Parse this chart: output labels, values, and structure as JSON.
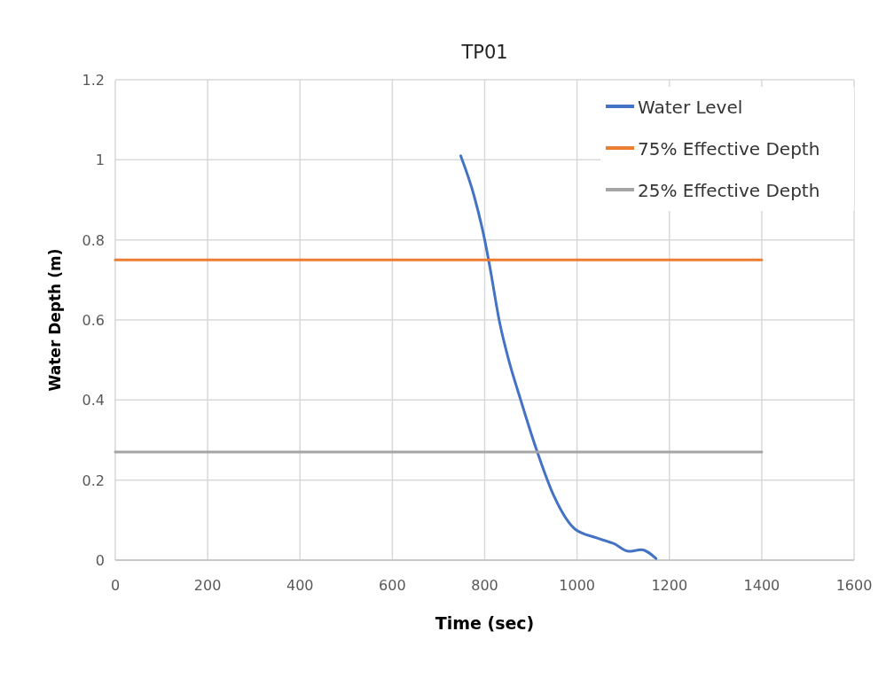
{
  "chart_data": {
    "type": "line",
    "title": "TP01",
    "xlabel": "Time (sec)",
    "ylabel": "Water Depth (m)",
    "xlim": [
      0,
      1600
    ],
    "xticks": [
      0,
      200,
      400,
      600,
      800,
      1000,
      1200,
      1400,
      1600
    ],
    "ylim": [
      0,
      1.2
    ],
    "yticks": [
      0,
      0.2,
      0.4,
      0.6,
      0.8,
      1,
      1.2
    ],
    "grid": true,
    "legend": "top right",
    "marker": "none",
    "line_style": "solid",
    "series": [
      {
        "name": "Water Level",
        "color": "#4472c4",
        "x": [
          748,
          777,
          800,
          810,
          833,
          852,
          878,
          911,
          950,
          995,
          1041,
          1080,
          1112,
          1139,
          1171
        ],
        "values": [
          1.01,
          0.91,
          0.8,
          0.74,
          0.59,
          0.5,
          0.4,
          0.28,
          0.16,
          0.078,
          0.056,
          0.041,
          0.022,
          0.026,
          0.004
        ]
      },
      {
        "name": "75% Effective Depth",
        "color": "#ed7d31",
        "x": [
          0,
          1400
        ],
        "values": [
          0.75,
          0.75
        ]
      },
      {
        "name": "25% Effective Depth",
        "color": "#a5a5a5",
        "x": [
          0,
          1400
        ],
        "values": [
          0.27,
          0.27
        ]
      }
    ]
  }
}
